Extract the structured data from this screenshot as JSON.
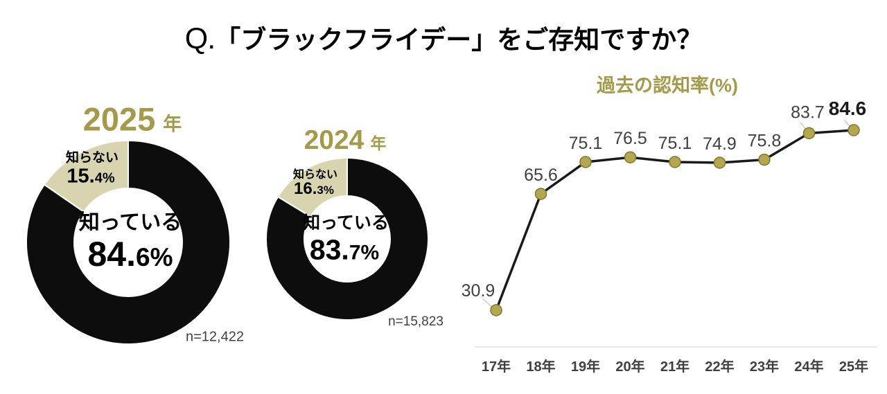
{
  "header": {
    "q_prefix": "Q.",
    "text": "「ブラックフライデー」をご存知ですか？"
  },
  "donuts": [
    {
      "year": "2025",
      "year_suffix": "年",
      "know_label": "知っている",
      "know_pct_main": "84.",
      "know_pct_sub": "6%",
      "unknown_label": "知らない",
      "unknown_pct_main": "15.",
      "unknown_pct_sub": "4%",
      "sample_label": "n=12,422"
    },
    {
      "year": "2024",
      "year_suffix": "年",
      "know_label": "知っている",
      "know_pct_main": "83.",
      "know_pct_sub": "7%",
      "unknown_label": "知らない",
      "unknown_pct_main": "16.",
      "unknown_pct_sub": "3%",
      "sample_label": "n=15,823"
    }
  ],
  "line_chart": {
    "title": "過去の認知率(%)"
  },
  "colors": {
    "gold": "#a49a4a",
    "tan": "#d9d4b0",
    "donut_black": "#0d0d0d",
    "line": "#1a1a1a",
    "marker_fill": "#b3a74f",
    "marker_stroke": "#80762f",
    "label_gray": "#404040",
    "axis_gray": "#d9d9d9",
    "leader_gray": "#b8b8b8"
  },
  "chart_data": [
    {
      "type": "pie",
      "donut": true,
      "title": "2025年",
      "labels": [
        "知っている",
        "知らない"
      ],
      "values": [
        84.6,
        15.4
      ],
      "n": 12422,
      "colors": [
        "#0d0d0d",
        "#d9d4b0"
      ]
    },
    {
      "type": "pie",
      "donut": true,
      "title": "2024年",
      "labels": [
        "知っている",
        "知らない"
      ],
      "values": [
        83.7,
        16.3
      ],
      "n": 15823,
      "colors": [
        "#0d0d0d",
        "#d9d4b0"
      ]
    },
    {
      "type": "line",
      "title": "過去の認知率(%)",
      "categories": [
        "17年",
        "18年",
        "19年",
        "20年",
        "21年",
        "22年",
        "23年",
        "24年",
        "25年"
      ],
      "values": [
        30.9,
        65.6,
        75.1,
        76.5,
        75.1,
        74.9,
        75.8,
        83.7,
        84.6
      ],
      "ylim": [
        20,
        90
      ],
      "grid": false,
      "legend": "none",
      "markers": true,
      "emphasized_last_label": true
    }
  ]
}
